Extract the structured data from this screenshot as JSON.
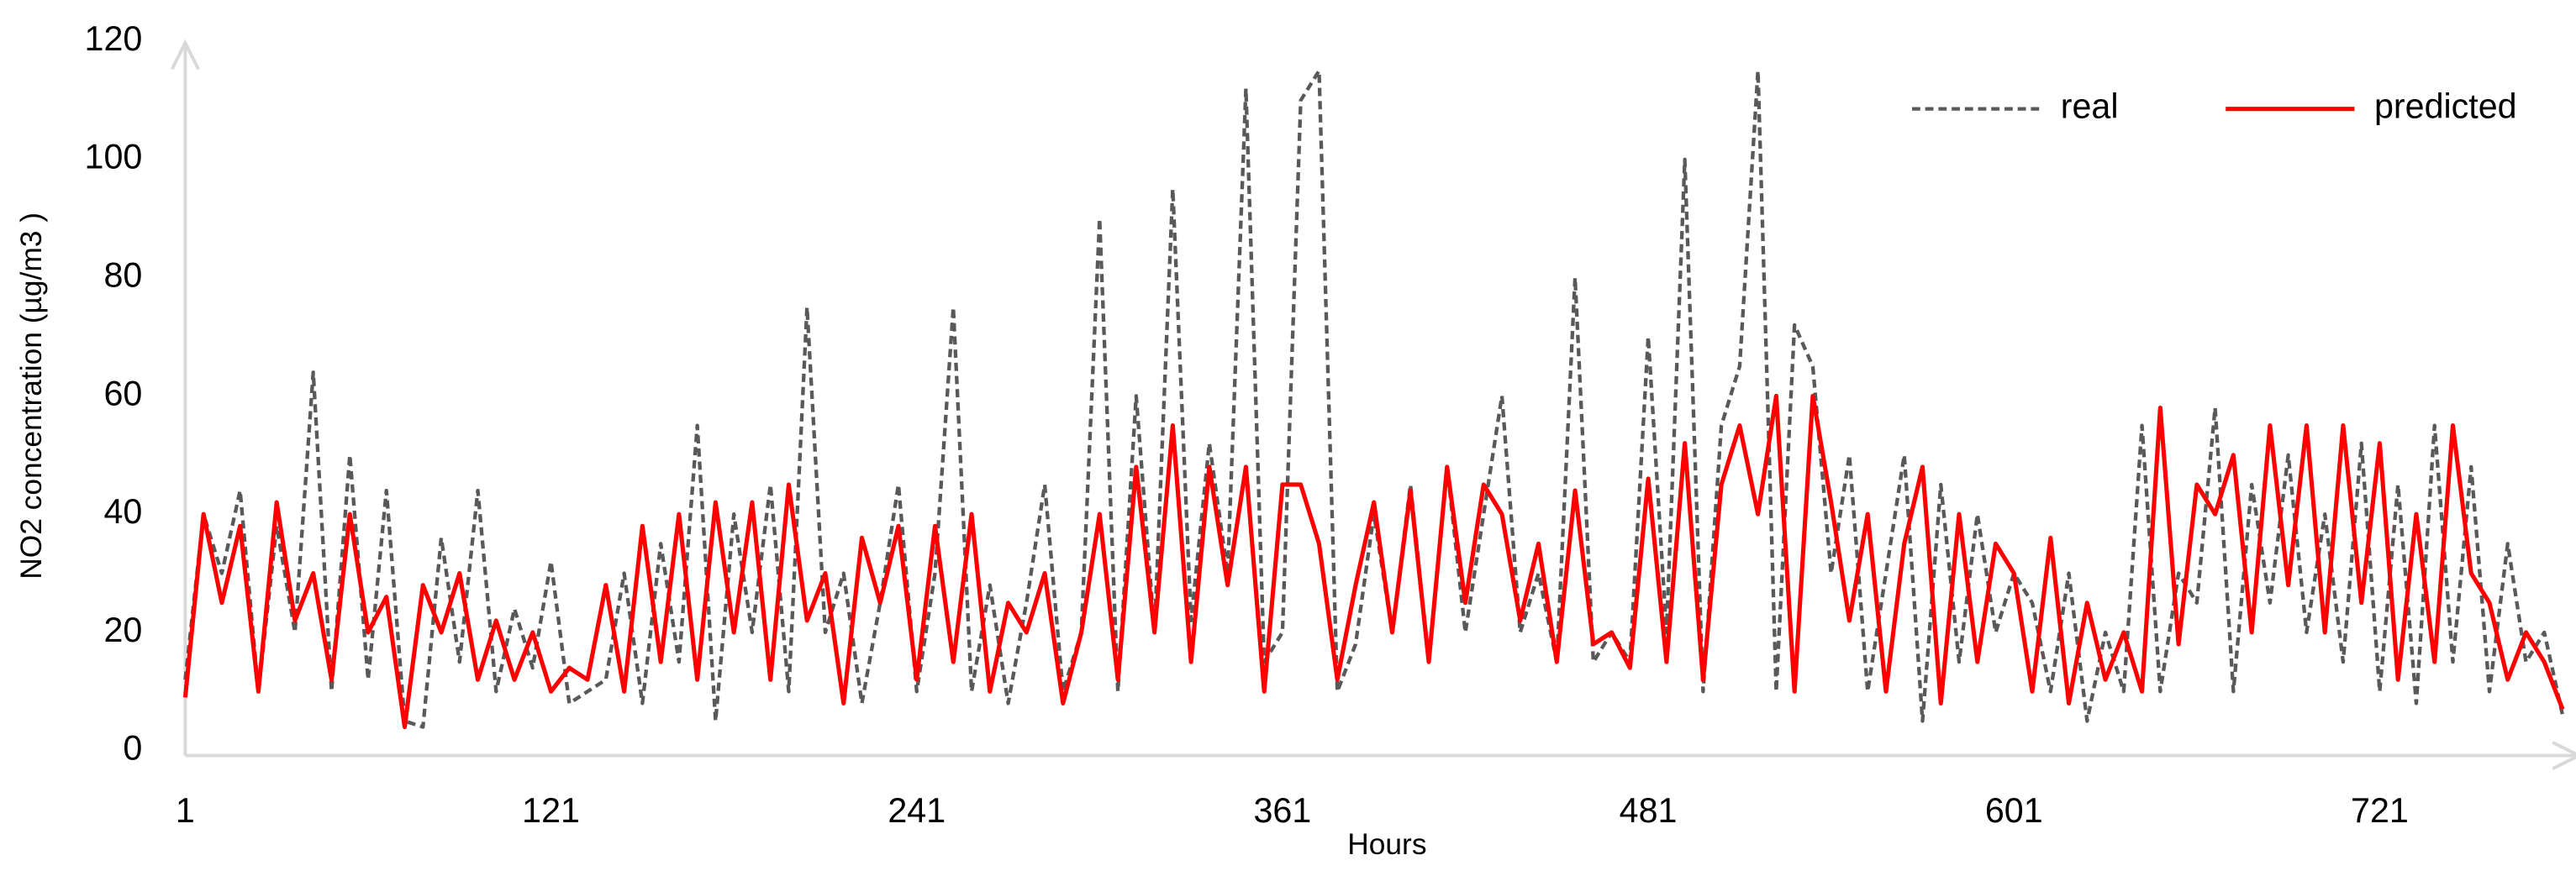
{
  "chart_data": {
    "type": "line",
    "x_label": "Hours",
    "y_label": "NO2 concentration (µg/m3 )",
    "x": [
      1,
      7,
      13,
      19,
      25,
      31,
      37,
      43,
      49,
      55,
      61,
      67,
      73,
      79,
      85,
      91,
      97,
      103,
      109,
      115,
      121,
      127,
      133,
      139,
      145,
      151,
      157,
      163,
      169,
      175,
      181,
      187,
      193,
      199,
      205,
      211,
      217,
      223,
      229,
      235,
      241,
      247,
      253,
      259,
      265,
      271,
      277,
      283,
      289,
      295,
      301,
      307,
      313,
      319,
      325,
      331,
      337,
      343,
      349,
      355,
      361,
      367,
      373,
      379,
      385,
      391,
      397,
      403,
      409,
      415,
      421,
      427,
      433,
      439,
      445,
      451,
      457,
      463,
      469,
      475,
      481,
      487,
      493,
      499,
      505,
      511,
      517,
      523,
      529,
      535,
      541,
      547,
      553,
      559,
      565,
      571,
      577,
      583,
      589,
      595,
      601,
      607,
      613,
      619,
      625,
      631,
      637,
      643,
      649,
      655,
      661,
      667,
      673,
      679,
      685,
      691,
      697,
      703,
      709,
      715,
      721,
      727,
      733,
      739,
      745,
      751,
      757,
      763,
      769,
      775,
      781
    ],
    "series": [
      {
        "name": "real",
        "color": "#595959",
        "dash": true,
        "values": [
          12,
          40,
          30,
          44,
          10,
          38,
          20,
          64,
          10,
          50,
          12,
          44,
          5,
          4,
          36,
          15,
          44,
          10,
          24,
          14,
          32,
          8,
          10,
          12,
          30,
          8,
          35,
          15,
          55,
          5,
          40,
          20,
          45,
          10,
          75,
          20,
          30,
          8,
          25,
          45,
          10,
          30,
          75,
          10,
          28,
          8,
          25,
          45,
          10,
          20,
          90,
          10,
          60,
          20,
          95,
          22,
          52,
          30,
          112,
          15,
          20,
          110,
          115,
          10,
          18,
          40,
          20,
          45,
          15,
          48,
          20,
          40,
          60,
          20,
          30,
          15,
          80,
          15,
          20,
          15,
          70,
          20,
          100,
          10,
          55,
          65,
          115,
          10,
          72,
          65,
          30,
          50,
          10,
          30,
          50,
          5,
          45,
          15,
          40,
          20,
          30,
          25,
          10,
          30,
          5,
          20,
          10,
          55,
          10,
          30,
          25,
          58,
          10,
          45,
          25,
          50,
          20,
          40,
          15,
          52,
          10,
          45,
          8,
          55,
          15,
          48,
          10,
          35,
          15,
          20,
          6
        ]
      },
      {
        "name": "predicted",
        "color": "#ff0000",
        "dash": false,
        "values": [
          9,
          40,
          25,
          38,
          10,
          42,
          22,
          30,
          12,
          40,
          20,
          26,
          4,
          28,
          20,
          30,
          12,
          22,
          12,
          20,
          10,
          14,
          12,
          28,
          10,
          38,
          15,
          40,
          12,
          42,
          20,
          42,
          12,
          45,
          22,
          30,
          8,
          36,
          25,
          38,
          12,
          38,
          15,
          40,
          10,
          25,
          20,
          30,
          8,
          20,
          40,
          12,
          48,
          20,
          55,
          15,
          48,
          28,
          48,
          10,
          45,
          45,
          35,
          12,
          28,
          42,
          20,
          44,
          15,
          48,
          25,
          45,
          40,
          22,
          35,
          15,
          44,
          18,
          20,
          14,
          46,
          15,
          52,
          12,
          45,
          55,
          40,
          60,
          10,
          60,
          42,
          22,
          40,
          10,
          35,
          48,
          8,
          40,
          15,
          35,
          30,
          10,
          36,
          8,
          25,
          12,
          20,
          10,
          58,
          18,
          45,
          40,
          50,
          20,
          55,
          28,
          55,
          20,
          55,
          25,
          52,
          12,
          40,
          15,
          55,
          30,
          25,
          12,
          20,
          15,
          7
        ]
      }
    ],
    "xlim": [
      1,
      788
    ],
    "ylim": [
      0,
      120
    ],
    "xticks": [
      1,
      121,
      241,
      361,
      481,
      601,
      721
    ],
    "yticks": [
      0,
      20,
      40,
      60,
      80,
      100,
      120
    ],
    "grid": false,
    "legend": "upper right"
  }
}
